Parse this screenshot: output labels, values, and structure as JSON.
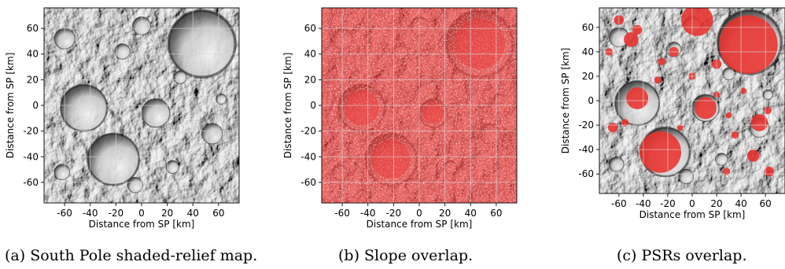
{
  "panels": [
    {
      "caption": "(a) South Pole shaded-relief map.",
      "overlay": "none",
      "chart_data": {
        "type": "heatmap",
        "xlabel": "Distance from SP [km]",
        "ylabel": "Distance from SP [km]",
        "xlim": [
          -76,
          76
        ],
        "ylim": [
          -76,
          76
        ],
        "xticks": [
          "-60",
          "-40",
          "-20",
          "0",
          "20",
          "40",
          "60"
        ],
        "yticks": [
          "60",
          "40",
          "20",
          "0",
          "-20",
          "-40",
          "-60"
        ],
        "grid": true
      }
    },
    {
      "caption": "(b) Slope overlap.",
      "overlay": "slope",
      "overlay_color": "#e8312e",
      "chart_data": {
        "type": "heatmap",
        "xlabel": "Distance from SP [km]",
        "ylabel": "Distance from SP [km]",
        "xlim": [
          -76,
          76
        ],
        "ylim": [
          -76,
          76
        ],
        "xticks": [
          "-60",
          "-40",
          "-20",
          "0",
          "20",
          "40",
          "60"
        ],
        "yticks": [
          "60",
          "40",
          "20",
          "0",
          "-20",
          "-40",
          "-60"
        ],
        "grid": true
      }
    },
    {
      "caption": "(c) PSRs overlap.",
      "overlay": "psr",
      "overlay_color": "#e8312e",
      "chart_data": {
        "type": "heatmap",
        "xlabel": "Distance from SP [km]",
        "ylabel": "Distance from SP [km]",
        "xlim": [
          -76,
          76
        ],
        "ylim": [
          -76,
          76
        ],
        "xticks": [
          "-60",
          "-40",
          "-20",
          "0",
          "20",
          "40",
          "60"
        ],
        "yticks": [
          "60",
          "40",
          "20",
          "0",
          "-20",
          "-40",
          "-60"
        ],
        "grid": true
      }
    }
  ],
  "terrain": {
    "craters": [
      {
        "x": 11,
        "y": -6,
        "r": 11
      },
      {
        "x": -45,
        "y": -2,
        "r": 18
      },
      {
        "x": -22,
        "y": -42,
        "r": 20
      },
      {
        "x": 47,
        "y": 48,
        "r": 26
      },
      {
        "x": -60,
        "y": 52,
        "r": 8
      },
      {
        "x": -15,
        "y": 42,
        "r": 6
      },
      {
        "x": 0,
        "y": 62,
        "r": 7
      },
      {
        "x": 55,
        "y": -22,
        "r": 8
      },
      {
        "x": 30,
        "y": 22,
        "r": 5
      },
      {
        "x": -5,
        "y": -62,
        "r": 6
      },
      {
        "x": 62,
        "y": 5,
        "r": 4
      },
      {
        "x": 24,
        "y": -48,
        "r": 5
      },
      {
        "x": -62,
        "y": -52,
        "r": 6
      }
    ],
    "psrs": [
      {
        "x": 46,
        "y": 46,
        "r": 24
      },
      {
        "x": 4,
        "y": 66,
        "r": 13
      },
      {
        "x": -45,
        "y": 2,
        "r": 9
      },
      {
        "x": 11,
        "y": -6,
        "r": 9
      },
      {
        "x": -26,
        "y": -42,
        "r": 17
      },
      {
        "x": -50,
        "y": 50,
        "r": 6
      },
      {
        "x": -60,
        "y": 66,
        "r": 4
      },
      {
        "x": -45,
        "y": 58,
        "r": 4
      },
      {
        "x": -15,
        "y": 40,
        "r": 4
      },
      {
        "x": -25,
        "y": 32,
        "r": 3
      },
      {
        "x": 20,
        "y": 30,
        "r": 4
      },
      {
        "x": -28,
        "y": 17,
        "r": 3
      },
      {
        "x": 0,
        "y": 20,
        "r": 3
      },
      {
        "x": 55,
        "y": -18,
        "r": 7
      },
      {
        "x": 62,
        "y": -8,
        "r": 3
      },
      {
        "x": 50,
        "y": -45,
        "r": 5
      },
      {
        "x": 63,
        "y": -58,
        "r": 4
      },
      {
        "x": 28,
        "y": -58,
        "r": 3
      },
      {
        "x": -65,
        "y": -22,
        "r": 4
      },
      {
        "x": -55,
        "y": -18,
        "r": 3
      },
      {
        "x": 30,
        "y": -12,
        "r": 2.5
      },
      {
        "x": 20,
        "y": 5,
        "r": 2.5
      },
      {
        "x": 42,
        "y": 8,
        "r": 2.5
      },
      {
        "x": -68,
        "y": 40,
        "r": 3
      },
      {
        "x": 35,
        "y": -28,
        "r": 3
      },
      {
        "x": -10,
        "y": -22,
        "r": 2.5
      }
    ]
  }
}
